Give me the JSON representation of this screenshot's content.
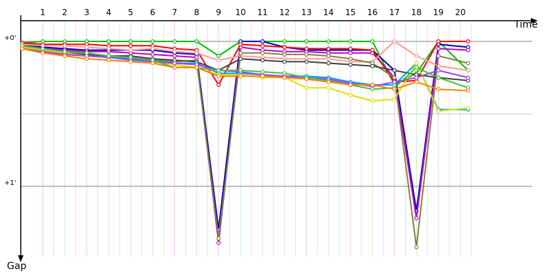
{
  "chart_data": {
    "type": "line",
    "xlabel": "Time",
    "ylabel": "Gap",
    "laps": [
      "1",
      "2",
      "3",
      "4",
      "5",
      "6",
      "7",
      "8",
      "9",
      "10",
      "11",
      "12",
      "13",
      "14",
      "15",
      "16",
      "17",
      "18",
      "19",
      "20"
    ],
    "gap_ticks": [
      {
        "label": "+0'",
        "value": 0
      },
      {
        "label": "+1'",
        "value": 1
      }
    ],
    "gap_domain": [
      0,
      1.37
    ],
    "grid": "vertical lines at each lap (alternating pink/green), horizontal lines at each minute",
    "series": [
      {
        "color": "#00c000",
        "values": [
          0.01,
          0,
          0,
          0,
          0,
          0,
          0,
          0,
          0,
          0.1,
          0,
          0,
          0,
          0,
          0,
          0,
          0,
          0.3,
          0.22,
          0,
          0.2
        ]
      },
      {
        "color": "#0000c0",
        "values": [
          0.02,
          0.04,
          0.05,
          0.06,
          0.06,
          0.06,
          0.06,
          0.08,
          0.09,
          1.3,
          0,
          0,
          0.04,
          0.06,
          0.06,
          0.06,
          0.06,
          0.2,
          1.17,
          0.02,
          0.04
        ]
      },
      {
        "color": "#c000c0",
        "values": [
          0.03,
          0.05,
          0.06,
          0.07,
          0.07,
          0.08,
          0.09,
          0.1,
          0.11,
          1.39,
          0.04,
          0.06,
          0.07,
          0.07,
          0.08,
          0.08,
          0.08,
          0.25,
          1.22,
          0.05,
          0.06
        ]
      },
      {
        "color": "#ff0000",
        "values": [
          0.01,
          0.02,
          0.02,
          0.02,
          0.03,
          0.03,
          0.03,
          0.05,
          0.06,
          0.3,
          0.02,
          0.03,
          0.04,
          0.05,
          0.05,
          0.05,
          0.06,
          0.28,
          0.27,
          0,
          0
        ]
      },
      {
        "color": "#ff9999",
        "values": [
          0.02,
          0.03,
          0.03,
          0.04,
          0.05,
          0.06,
          0.05,
          0.07,
          0.08,
          0.13,
          0.1,
          0.11,
          0.12,
          0.12,
          0.12,
          0.14,
          0.14,
          0,
          0.1,
          0.17,
          0.2
        ]
      },
      {
        "color": "#808040",
        "values": [
          0.04,
          0.07,
          0.09,
          0.1,
          0.11,
          0.12,
          0.13,
          0.14,
          0.13,
          1.36,
          0.08,
          0.08,
          0.09,
          0.09,
          0.1,
          0.12,
          0.15,
          0.25,
          1.42,
          0.1,
          0.15
        ]
      },
      {
        "color": "#404040",
        "values": [
          0.04,
          0.06,
          0.08,
          0.09,
          0.1,
          0.1,
          0.12,
          0.13,
          0.14,
          0.2,
          0.12,
          0.13,
          0.14,
          0.14,
          0.15,
          0.16,
          0.17,
          0.2,
          0.23,
          0.25,
          0.27
        ]
      },
      {
        "color": "#00a0ff",
        "values": [
          0.05,
          0.07,
          0.09,
          0.1,
          0.11,
          0.13,
          0.14,
          0.15,
          0.15,
          0.22,
          0.22,
          0.23,
          0.24,
          0.24,
          0.25,
          0.28,
          0.3,
          0.3,
          0.15,
          0.47,
          0.47
        ]
      },
      {
        "color": "#e0e000",
        "values": [
          0.04,
          0.06,
          0.08,
          0.1,
          0.11,
          0.12,
          0.14,
          0.16,
          0.18,
          0.23,
          0.23,
          0.25,
          0.25,
          0.32,
          0.32,
          0.37,
          0.41,
          0.4,
          0.15,
          0.48,
          0.46
        ]
      },
      {
        "color": "#a040ff",
        "values": [
          0.05,
          0.07,
          0.09,
          0.1,
          0.11,
          0.12,
          0.14,
          0.15,
          0.16,
          0.2,
          0.21,
          0.23,
          0.24,
          0.25,
          0.26,
          0.29,
          0.31,
          0.28,
          0.25,
          0.2,
          0.25
        ]
      },
      {
        "color": "#40c040",
        "values": [
          0.03,
          0.05,
          0.07,
          0.08,
          0.1,
          0.11,
          0.13,
          0.18,
          0.18,
          0.2,
          0.2,
          0.21,
          0.22,
          0.25,
          0.27,
          0.3,
          0.33,
          0.32,
          0.18,
          0.25,
          0.32
        ]
      },
      {
        "color": "#ff8000",
        "values": [
          0.05,
          0.08,
          0.1,
          0.12,
          0.13,
          0.14,
          0.15,
          0.18,
          0.18,
          0.24,
          0.24,
          0.24,
          0.25,
          0.26,
          0.28,
          0.3,
          0.3,
          0.33,
          0.28,
          0.33,
          0.34
        ]
      }
    ]
  }
}
